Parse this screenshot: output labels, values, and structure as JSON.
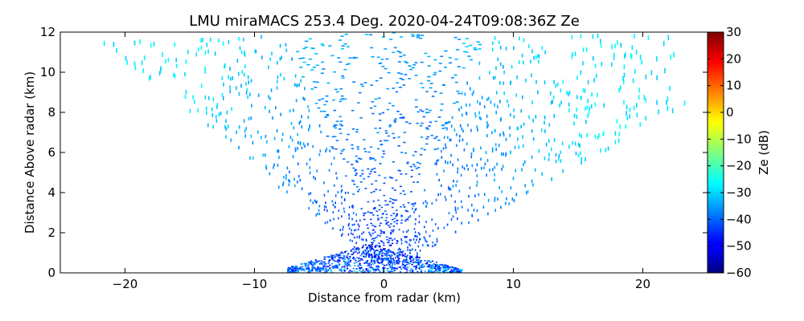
{
  "chart_data": {
    "type": "heatmap",
    "title": "LMU miraMACS 253.4 Deg. 2020-04-24T09:08:36Z  Ze",
    "xlabel": "Distance from radar (km)",
    "ylabel": "Distance Above radar  (km)",
    "xlim": [
      -25,
      25
    ],
    "ylim": [
      0,
      12
    ],
    "xticks": [
      -20,
      -10,
      0,
      10,
      20
    ],
    "yticks": [
      0,
      2,
      4,
      6,
      8,
      10,
      12
    ],
    "xtick_labels": [
      "−20",
      "−10",
      "0",
      "10",
      "20"
    ],
    "ytick_labels": [
      "0",
      "2",
      "4",
      "6",
      "8",
      "10",
      "12"
    ],
    "colorbar": {
      "label": "Ze (dB)",
      "range": [
        -60,
        30
      ],
      "ticks": [
        -60,
        -50,
        -40,
        -30,
        -20,
        -10,
        0,
        10,
        20,
        30
      ],
      "tick_labels": [
        "−60",
        "−50",
        "−40",
        "−30",
        "−20",
        "−10",
        "0",
        "10",
        "20",
        "30"
      ],
      "colormap": "jet"
    },
    "scan": {
      "geometry": "RHI sector",
      "left_edge_elevation_deg_from_horizontal": 152,
      "right_edge_elevation_deg_from_horizontal": 20,
      "max_range_km": 25,
      "ze_near_radar_db": -45,
      "ze_far_range_db": -28
    },
    "grid": false,
    "legend": "none"
  },
  "colors": {
    "background": "#ffffff",
    "axes": "#000000"
  }
}
